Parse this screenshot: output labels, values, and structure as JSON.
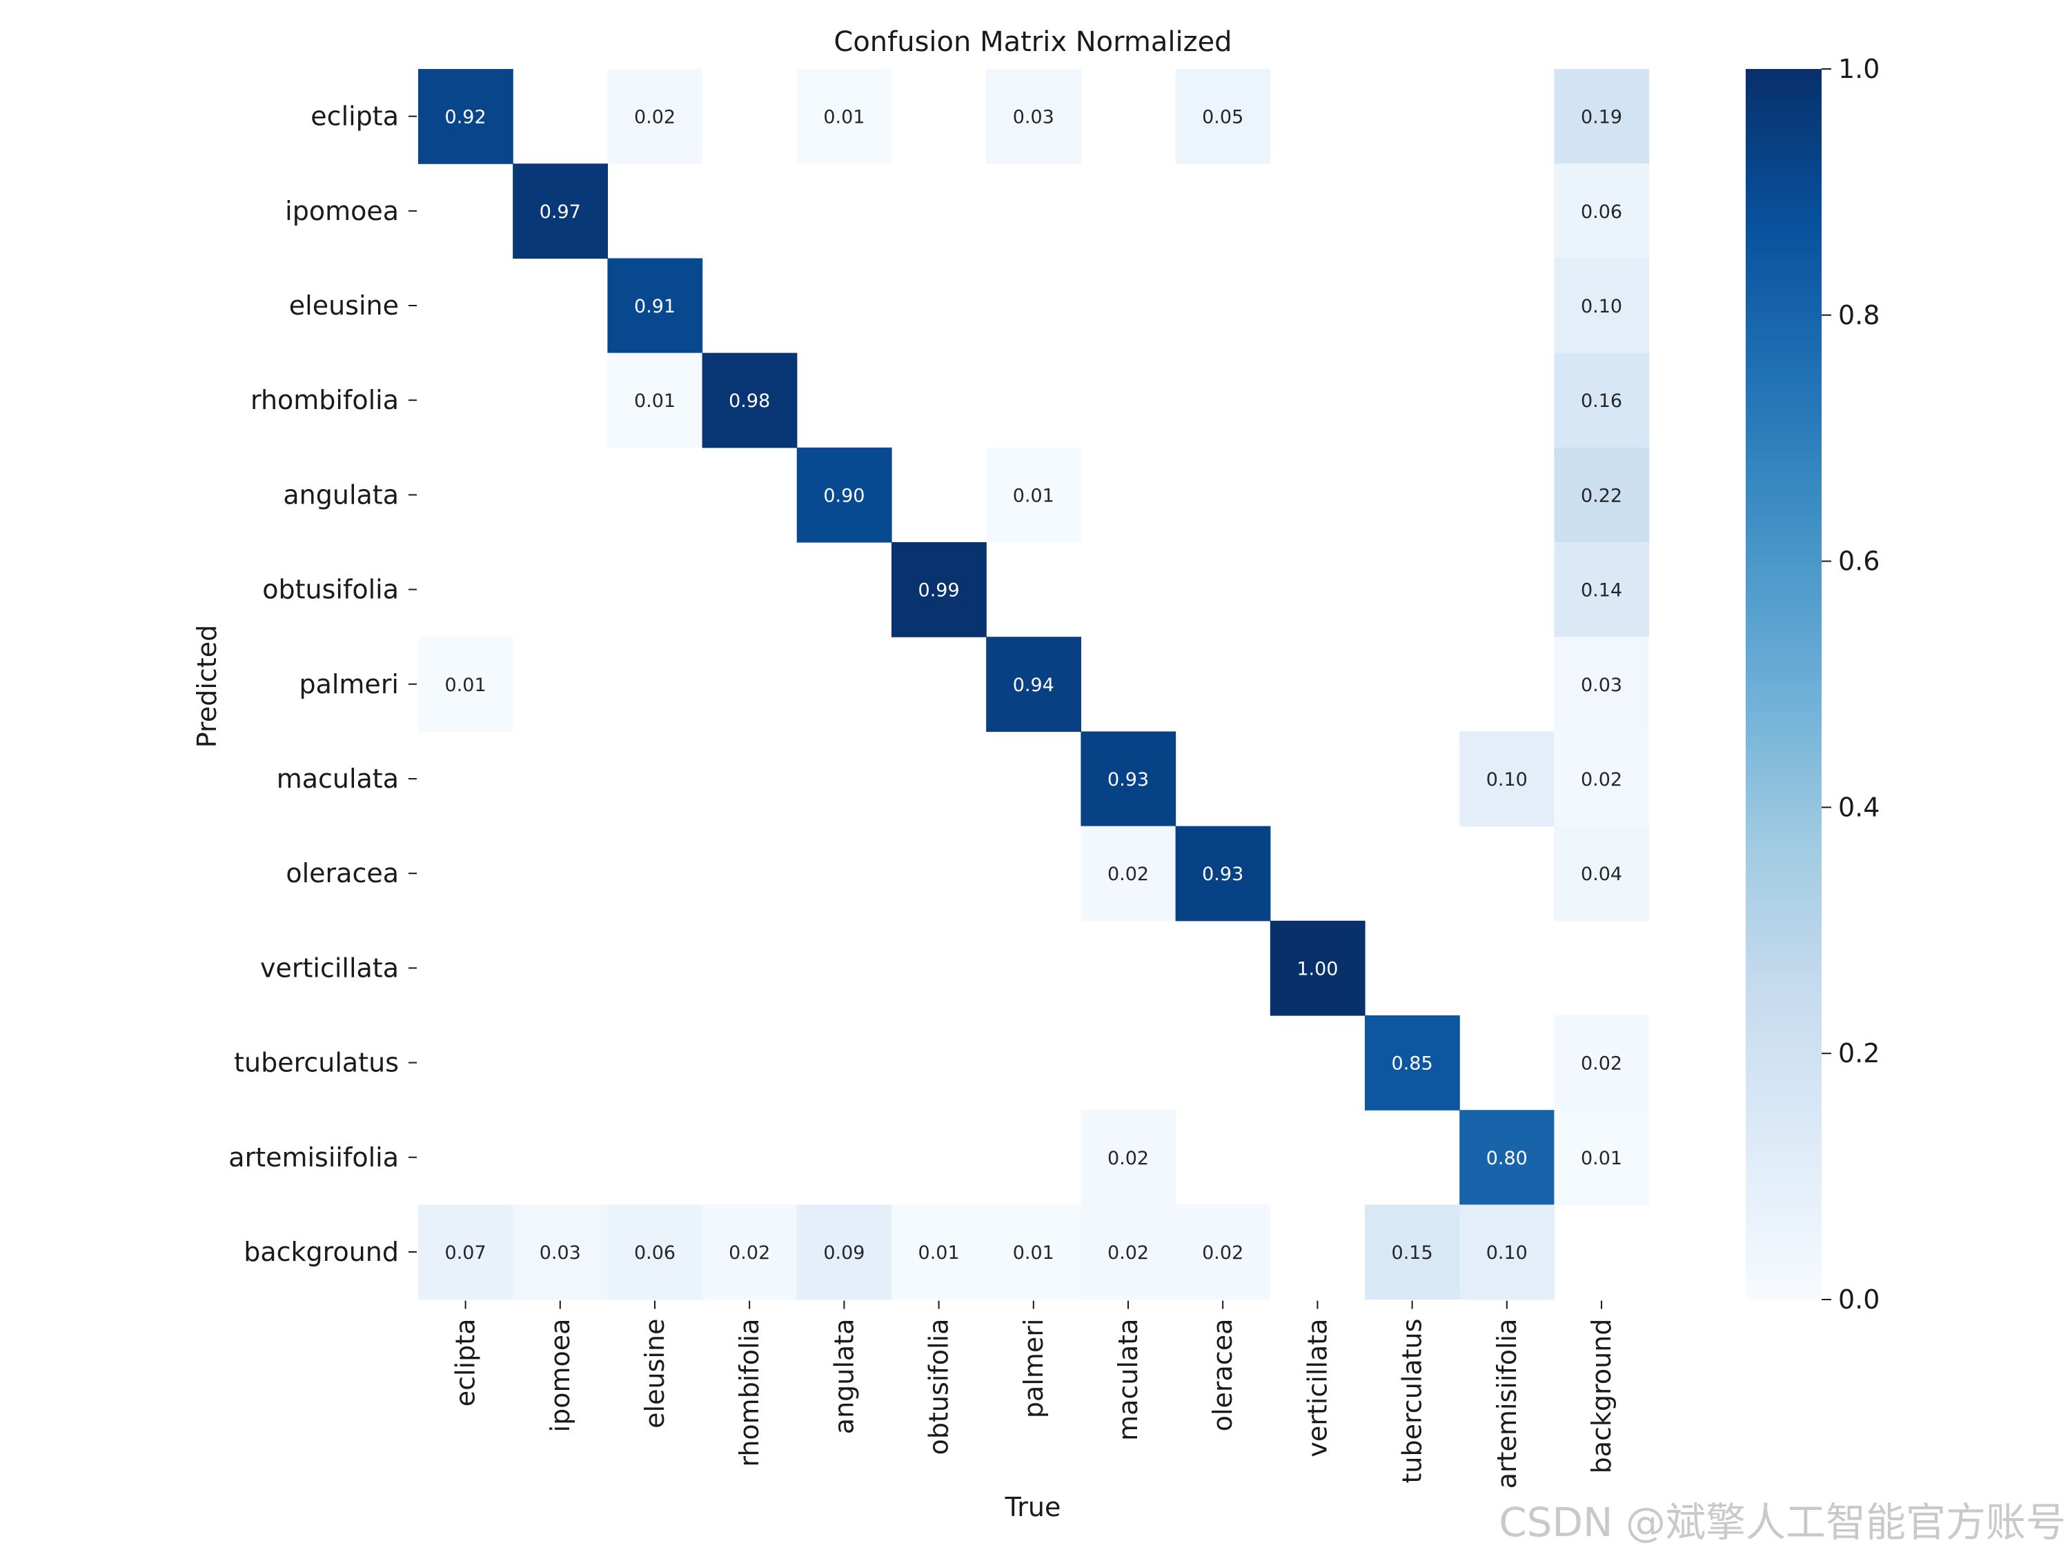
{
  "chart_data": {
    "type": "heatmap",
    "title": "Confusion Matrix Normalized",
    "xlabel": "True",
    "ylabel": "Predicted",
    "x_categories": [
      "eclipta",
      "ipomoea",
      "eleusine",
      "rhombifolia",
      "angulata",
      "obtusifolia",
      "palmeri",
      "maculata",
      "oleracea",
      "verticillata",
      "tuberculatus",
      "artemisiifolia",
      "background"
    ],
    "y_categories": [
      "eclipta",
      "ipomoea",
      "eleusine",
      "rhombifolia",
      "angulata",
      "obtusifolia",
      "palmeri",
      "maculata",
      "oleracea",
      "verticillata",
      "tuberculatus",
      "artemisiifolia",
      "background"
    ],
    "values": [
      [
        0.92,
        null,
        0.02,
        null,
        0.01,
        null,
        0.03,
        null,
        0.05,
        null,
        null,
        null,
        0.19
      ],
      [
        null,
        0.97,
        null,
        null,
        null,
        null,
        null,
        null,
        null,
        null,
        null,
        null,
        0.06
      ],
      [
        null,
        null,
        0.91,
        null,
        null,
        null,
        null,
        null,
        null,
        null,
        null,
        null,
        0.1
      ],
      [
        null,
        null,
        0.01,
        0.98,
        null,
        null,
        null,
        null,
        null,
        null,
        null,
        null,
        0.16
      ],
      [
        null,
        null,
        null,
        null,
        0.9,
        null,
        0.01,
        null,
        null,
        null,
        null,
        null,
        0.22
      ],
      [
        null,
        null,
        null,
        null,
        null,
        0.99,
        null,
        null,
        null,
        null,
        null,
        null,
        0.14
      ],
      [
        0.01,
        null,
        null,
        null,
        null,
        null,
        0.94,
        null,
        null,
        null,
        null,
        null,
        0.03
      ],
      [
        null,
        null,
        null,
        null,
        null,
        null,
        null,
        0.93,
        null,
        null,
        null,
        0.1,
        0.02
      ],
      [
        null,
        null,
        null,
        null,
        null,
        null,
        null,
        0.02,
        0.93,
        null,
        null,
        null,
        0.04
      ],
      [
        null,
        null,
        null,
        null,
        null,
        null,
        null,
        null,
        null,
        1.0,
        null,
        null,
        null
      ],
      [
        null,
        null,
        null,
        null,
        null,
        null,
        null,
        null,
        null,
        null,
        0.85,
        null,
        0.02
      ],
      [
        null,
        null,
        null,
        null,
        null,
        null,
        null,
        0.02,
        null,
        null,
        null,
        0.8,
        0.01
      ],
      [
        0.07,
        0.03,
        0.06,
        0.02,
        0.09,
        0.01,
        0.01,
        0.02,
        0.02,
        null,
        0.15,
        0.1,
        null
      ]
    ],
    "colorbar": {
      "range": [
        0.0,
        1.0
      ],
      "ticks": [
        "0.0",
        "0.2",
        "0.4",
        "0.6",
        "0.8",
        "1.0"
      ],
      "colormap": "Blues"
    },
    "grid": false
  },
  "watermark": "CSDN @斌擎人工智能官方账号"
}
